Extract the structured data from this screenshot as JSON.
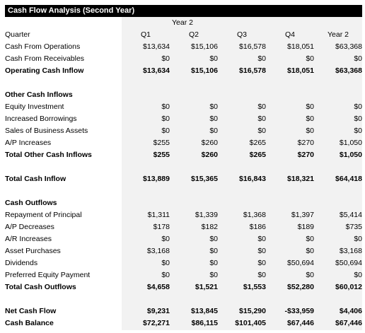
{
  "title": "Cash Flow Analysis (Second Year)",
  "year_label": "Year 2",
  "header": {
    "label": "Quarter",
    "cols": [
      "Q1",
      "Q2",
      "Q3",
      "Q4",
      "Year 2"
    ]
  },
  "rows": [
    {
      "label": "Cash From Operations",
      "bold": false,
      "values": [
        "$13,634",
        "$15,106",
        "$16,578",
        "$18,051",
        "$63,368"
      ]
    },
    {
      "label": "Cash From Receivables",
      "bold": false,
      "values": [
        "$0",
        "$0",
        "$0",
        "$0",
        "$0"
      ]
    },
    {
      "label": "Operating Cash Inflow",
      "bold": true,
      "values": [
        "$13,634",
        "$15,106",
        "$16,578",
        "$18,051",
        "$63,368"
      ]
    },
    {
      "spacer": true
    },
    {
      "label": "Other Cash Inflows",
      "bold": true,
      "values": []
    },
    {
      "label": "Equity Investment",
      "bold": false,
      "values": [
        "$0",
        "$0",
        "$0",
        "$0",
        "$0"
      ]
    },
    {
      "label": "Increased Borrowings",
      "bold": false,
      "values": [
        "$0",
        "$0",
        "$0",
        "$0",
        "$0"
      ]
    },
    {
      "label": "Sales of Business Assets",
      "bold": false,
      "values": [
        "$0",
        "$0",
        "$0",
        "$0",
        "$0"
      ]
    },
    {
      "label": "A/P Increases",
      "bold": false,
      "values": [
        "$255",
        "$260",
        "$265",
        "$270",
        "$1,050"
      ]
    },
    {
      "label": "Total Other Cash Inflows",
      "bold": true,
      "values": [
        "$255",
        "$260",
        "$265",
        "$270",
        "$1,050"
      ]
    },
    {
      "spacer": true
    },
    {
      "label": "Total Cash Inflow",
      "bold": true,
      "values": [
        "$13,889",
        "$15,365",
        "$16,843",
        "$18,321",
        "$64,418"
      ]
    },
    {
      "spacer": true
    },
    {
      "label": "Cash Outflows",
      "bold": true,
      "values": []
    },
    {
      "label": "Repayment of Principal",
      "bold": false,
      "values": [
        "$1,311",
        "$1,339",
        "$1,368",
        "$1,397",
        "$5,414"
      ]
    },
    {
      "label": "A/P Decreases",
      "bold": false,
      "values": [
        "$178",
        "$182",
        "$186",
        "$189",
        "$735"
      ]
    },
    {
      "label": "A/R Increases",
      "bold": false,
      "values": [
        "$0",
        "$0",
        "$0",
        "$0",
        "$0"
      ]
    },
    {
      "label": "Asset Purchases",
      "bold": false,
      "values": [
        "$3,168",
        "$0",
        "$0",
        "$0",
        "$3,168"
      ]
    },
    {
      "label": "Dividends",
      "bold": false,
      "values": [
        "$0",
        "$0",
        "$0",
        "$50,694",
        "$50,694"
      ]
    },
    {
      "label": "Preferred Equity Payment",
      "bold": false,
      "values": [
        "$0",
        "$0",
        "$0",
        "$0",
        "$0"
      ]
    },
    {
      "label": "Total Cash Outflows",
      "bold": true,
      "values": [
        "$4,658",
        "$1,521",
        "$1,553",
        "$52,280",
        "$60,012"
      ]
    },
    {
      "spacer": true
    },
    {
      "label": "Net Cash Flow",
      "bold": true,
      "values": [
        "$9,231",
        "$13,845",
        "$15,290",
        "-$33,959",
        "$4,406"
      ]
    },
    {
      "label": "Cash Balance",
      "bold": true,
      "values": [
        "$72,271",
        "$86,115",
        "$101,405",
        "$67,446",
        "$67,446"
      ]
    }
  ]
}
